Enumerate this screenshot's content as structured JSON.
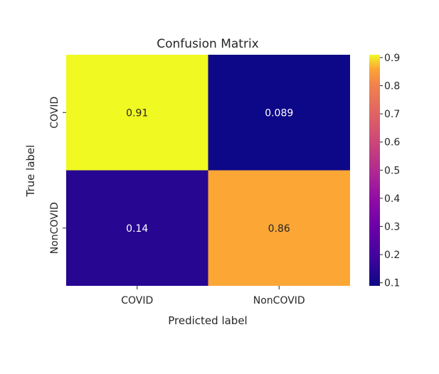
{
  "chart_data": {
    "type": "heatmap",
    "title": "Confusion Matrix",
    "xlabel": "Predicted label",
    "ylabel": "True label",
    "x_categories": [
      "COVID",
      "NonCOVID"
    ],
    "y_categories": [
      "COVID",
      "NonCOVID"
    ],
    "values": [
      [
        0.91,
        0.089
      ],
      [
        0.14,
        0.86
      ]
    ],
    "cell_labels": [
      [
        "0.91",
        "0.089"
      ],
      [
        "0.14",
        "0.86"
      ]
    ],
    "colormap": "plasma",
    "colorbar": {
      "range": [
        0.089,
        0.91
      ],
      "ticks": [
        0.1,
        0.2,
        0.3,
        0.4,
        0.5,
        0.6,
        0.7,
        0.8,
        0.9
      ],
      "tick_labels": [
        "0.1",
        "0.2",
        "0.3",
        "0.4",
        "0.5",
        "0.6",
        "0.7",
        "0.8",
        "0.9"
      ]
    }
  }
}
